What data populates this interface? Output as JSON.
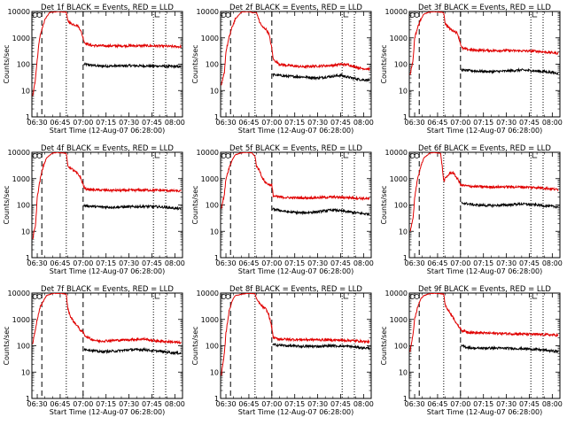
{
  "figure": {
    "shared": {
      "x_ticks": [
        "06:30",
        "06:45",
        "07:00",
        "07:15",
        "07:30",
        "07:45",
        "08:00"
      ],
      "x_tick_minutes": [
        390,
        405,
        420,
        435,
        450,
        465,
        480
      ],
      "xlim_minutes": [
        386.5,
        485
      ],
      "xlabel": "Start Time (12-Aug-07 06:28:00)",
      "ylabel": "Counts/sec",
      "y_ticks": [
        "1",
        "10",
        "100",
        "1000",
        "10000"
      ],
      "y_tick_values": [
        1,
        10,
        100,
        1000,
        10000
      ],
      "ylim": [
        1,
        10000
      ],
      "y_scale": "log",
      "dashed_lines_minutes": [
        393,
        420
      ],
      "dotted_lines_minutes": [
        409,
        466,
        474
      ],
      "colors": {
        "events": "#000000",
        "lld": "#e00000"
      }
    }
  },
  "chart_data": [
    {
      "type": "line",
      "title": "Det 1f BLACK = Events, RED = LLD",
      "series": [
        {
          "legend": "Events",
          "color": "#000000",
          "x": [
            420.5,
            430,
            440,
            450,
            460,
            470,
            478,
            484
          ],
          "y": [
            100,
            85,
            85,
            88,
            86,
            85,
            82,
            80
          ]
        },
        {
          "legend": "LLD",
          "color": "#e00000",
          "x": [
            387,
            388.5,
            390,
            391.5,
            393,
            395,
            398,
            400,
            403,
            405,
            407,
            409,
            410,
            412,
            414,
            416,
            418,
            420,
            421,
            425,
            430,
            440,
            450,
            460,
            470,
            478,
            484
          ],
          "y": [
            6,
            20,
            150,
            1000,
            2000,
            5000,
            9000,
            9500,
            9800,
            9800,
            9600,
            9500,
            4500,
            3500,
            3200,
            3000,
            2200,
            1000,
            650,
            520,
            500,
            495,
            500,
            500,
            490,
            470,
            460
          ]
        }
      ]
    },
    {
      "type": "line",
      "title": "Det 2f BLACK = Events, RED = LLD",
      "series": [
        {
          "legend": "Events",
          "color": "#000000",
          "x": [
            420.5,
            430,
            440,
            450,
            460,
            465,
            470,
            478,
            484
          ],
          "y": [
            40,
            35,
            33,
            30,
            35,
            38,
            32,
            26,
            25
          ]
        },
        {
          "legend": "LLD",
          "color": "#e00000",
          "x": [
            387,
            389,
            390,
            392,
            394,
            396,
            400,
            403,
            405,
            406,
            407,
            410,
            412,
            414,
            416,
            418,
            420,
            421,
            425,
            430,
            440,
            450,
            460,
            465,
            470,
            478,
            484
          ],
          "y": [
            15,
            50,
            300,
            1000,
            2500,
            5000,
            9500,
            9800,
            9900,
            9800,
            9000,
            9000,
            4000,
            2500,
            2200,
            1500,
            400,
            150,
            100,
            90,
            80,
            85,
            90,
            100,
            95,
            70,
            65
          ]
        }
      ]
    },
    {
      "type": "line",
      "title": "Det 3f BLACK = Events, RED = LLD",
      "series": [
        {
          "legend": "Events",
          "color": "#000000",
          "x": [
            420.5,
            430,
            440,
            450,
            460,
            470,
            478,
            484
          ],
          "y": [
            60,
            55,
            52,
            55,
            60,
            55,
            50,
            45
          ]
        },
        {
          "legend": "LLD",
          "color": "#e00000",
          "x": [
            387,
            389,
            390,
            392,
            394,
            396,
            400,
            403,
            405,
            407,
            409,
            410,
            412,
            414,
            416,
            418,
            420,
            421,
            425,
            430,
            440,
            450,
            460,
            470,
            478,
            484
          ],
          "y": [
            40,
            150,
            1000,
            2500,
            5000,
            8000,
            9600,
            9800,
            9700,
            9500,
            9000,
            3500,
            2500,
            2000,
            1800,
            1500,
            600,
            400,
            360,
            340,
            330,
            330,
            320,
            310,
            280,
            260
          ]
        }
      ]
    },
    {
      "type": "line",
      "title": "Det 4f BLACK = Events, RED = LLD",
      "series": [
        {
          "legend": "Events",
          "color": "#000000",
          "x": [
            420.5,
            430,
            440,
            450,
            460,
            470,
            478,
            484
          ],
          "y": [
            95,
            85,
            82,
            85,
            88,
            85,
            78,
            70
          ]
        },
        {
          "legend": "LLD",
          "color": "#e00000",
          "x": [
            387,
            389,
            390,
            392,
            394,
            396,
            400,
            403,
            405,
            407,
            409,
            410,
            412,
            414,
            416,
            418,
            420,
            421,
            425,
            430,
            440,
            450,
            460,
            470,
            478,
            484
          ],
          "y": [
            5,
            20,
            200,
            1000,
            3000,
            6000,
            9500,
            9800,
            9700,
            9500,
            9000,
            3000,
            2500,
            2000,
            1600,
            1200,
            600,
            420,
            380,
            370,
            360,
            360,
            370,
            360,
            350,
            330
          ]
        }
      ]
    },
    {
      "type": "line",
      "title": "Det 5f BLACK = Events, RED = LLD",
      "series": [
        {
          "legend": "Events",
          "color": "#000000",
          "x": [
            420.5,
            430,
            440,
            450,
            460,
            470,
            478,
            484
          ],
          "y": [
            70,
            55,
            50,
            55,
            65,
            55,
            48,
            45
          ]
        },
        {
          "legend": "LLD",
          "color": "#e00000",
          "x": [
            387,
            389,
            390,
            392,
            394,
            396,
            400,
            403,
            405,
            407,
            409,
            410,
            412,
            414,
            416,
            418,
            420,
            421,
            425,
            430,
            440,
            450,
            460,
            470,
            478,
            484
          ],
          "y": [
            80,
            250,
            1000,
            2500,
            5000,
            8000,
            9500,
            9800,
            9700,
            9500,
            7000,
            3000,
            2000,
            1000,
            700,
            600,
            550,
            220,
            200,
            190,
            185,
            190,
            200,
            190,
            180,
            170
          ]
        }
      ]
    },
    {
      "type": "line",
      "title": "Det 6f BLACK = Events, RED = LLD",
      "series": [
        {
          "legend": "Events",
          "color": "#000000",
          "x": [
            420.5,
            430,
            440,
            450,
            460,
            470,
            478,
            484
          ],
          "y": [
            120,
            100,
            95,
            100,
            110,
            100,
            90,
            85
          ]
        },
        {
          "legend": "LLD",
          "color": "#e00000",
          "x": [
            387,
            389,
            390,
            392,
            394,
            396,
            400,
            403,
            405,
            407,
            408,
            409,
            410,
            413,
            415,
            418,
            420,
            421,
            425,
            430,
            440,
            450,
            460,
            470,
            478,
            484
          ],
          "y": [
            10,
            30,
            200,
            1000,
            3000,
            6000,
            9500,
            9800,
            9600,
            9000,
            3000,
            800,
            1000,
            1600,
            1700,
            1000,
            600,
            560,
            520,
            500,
            480,
            490,
            480,
            460,
            420,
            380
          ]
        }
      ]
    },
    {
      "type": "line",
      "title": "Det 7f BLACK = Events, RED = LLD",
      "series": [
        {
          "legend": "Events",
          "color": "#000000",
          "x": [
            420.5,
            425,
            430,
            440,
            450,
            460,
            465,
            470,
            478,
            484
          ],
          "y": [
            75,
            68,
            60,
            62,
            70,
            72,
            65,
            62,
            55,
            52
          ]
        },
        {
          "legend": "LLD",
          "color": "#e00000",
          "x": [
            387,
            389,
            390,
            392,
            394,
            396,
            400,
            403,
            405,
            407,
            409,
            410,
            412,
            414,
            416,
            418,
            420,
            421,
            425,
            430,
            440,
            450,
            460,
            465,
            470,
            478,
            484
          ],
          "y": [
            120,
            500,
            1000,
            3000,
            5000,
            8000,
            9600,
            9800,
            9700,
            9500,
            9000,
            2500,
            1200,
            800,
            600,
            400,
            320,
            250,
            180,
            150,
            160,
            170,
            180,
            160,
            150,
            140,
            130
          ]
        }
      ]
    },
    {
      "type": "line",
      "title": "Det 8f BLACK = Events, RED = LLD",
      "series": [
        {
          "legend": "Events",
          "color": "#000000",
          "x": [
            420.5,
            430,
            440,
            450,
            460,
            470,
            478,
            484
          ],
          "y": [
            110,
            100,
            95,
            95,
            100,
            95,
            85,
            80
          ]
        },
        {
          "legend": "LLD",
          "color": "#e00000",
          "x": [
            387,
            389,
            390,
            392,
            394,
            396,
            400,
            403,
            405,
            407,
            409,
            410,
            412,
            414,
            416,
            418,
            420,
            421,
            425,
            430,
            440,
            450,
            460,
            470,
            478,
            484
          ],
          "y": [
            8,
            50,
            300,
            2000,
            5000,
            8000,
            9000,
            9600,
            9800,
            9600,
            9400,
            6000,
            4000,
            3000,
            2500,
            1500,
            500,
            200,
            180,
            175,
            170,
            170,
            165,
            160,
            150,
            140
          ]
        }
      ]
    },
    {
      "type": "line",
      "title": "Det 9f BLACK = Events, RED = LLD",
      "series": [
        {
          "legend": "Events",
          "color": "#000000",
          "x": [
            420.5,
            425,
            430,
            440,
            450,
            460,
            470,
            478,
            484
          ],
          "y": [
            100,
            85,
            80,
            82,
            80,
            78,
            72,
            65,
            60
          ]
        },
        {
          "legend": "LLD",
          "color": "#e00000",
          "x": [
            387,
            389,
            390,
            392,
            394,
            396,
            400,
            403,
            405,
            407,
            409,
            410,
            412,
            414,
            416,
            418,
            420,
            421,
            425,
            430,
            440,
            450,
            460,
            470,
            478,
            484
          ],
          "y": [
            60,
            300,
            1000,
            3000,
            6000,
            8000,
            9600,
            9800,
            9700,
            9500,
            9000,
            3500,
            2200,
            1500,
            1000,
            600,
            450,
            380,
            330,
            310,
            300,
            290,
            280,
            270,
            260,
            250
          ]
        }
      ]
    }
  ]
}
